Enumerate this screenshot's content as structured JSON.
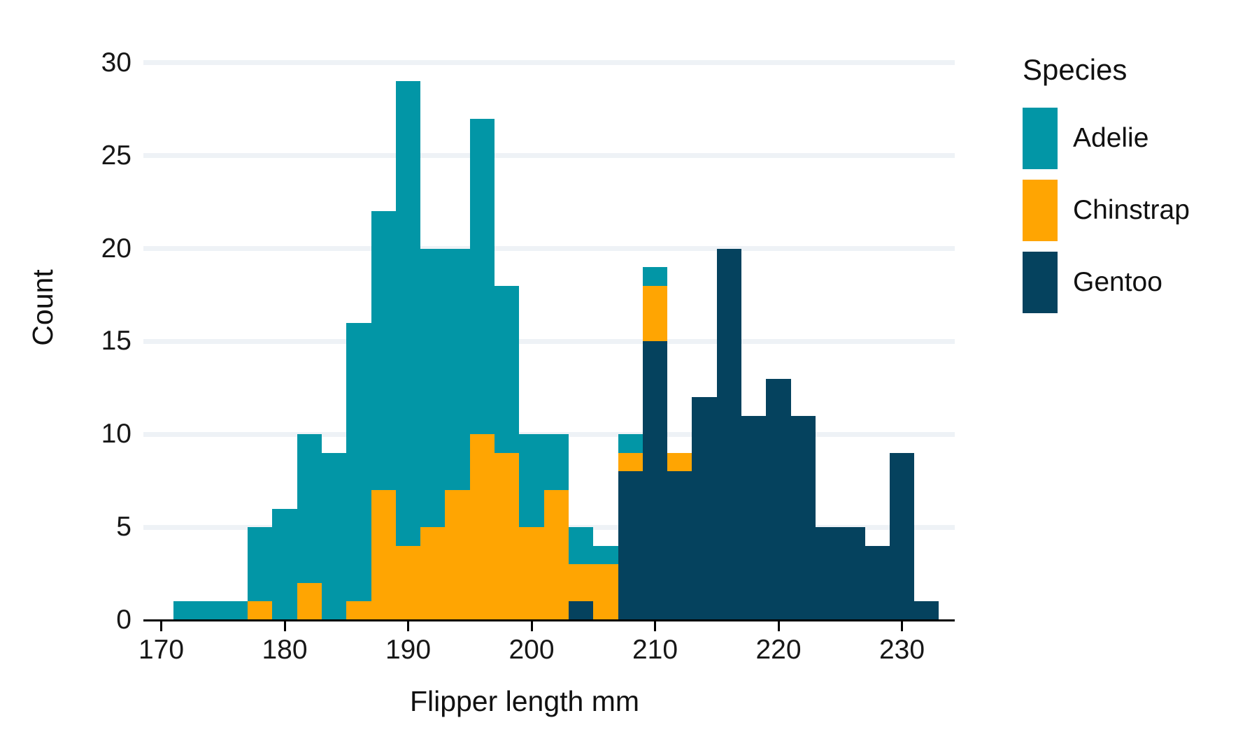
{
  "chart_data": {
    "type": "bar",
    "subtype": "stacked-histogram",
    "title": "",
    "xlabel": "Flipper length mm",
    "ylabel": "Count",
    "bin_width_mm": 2,
    "bin_starts": [
      171,
      173,
      175,
      177,
      179,
      181,
      183,
      185,
      187,
      189,
      191,
      193,
      195,
      197,
      199,
      201,
      203,
      205,
      207,
      209,
      211,
      213,
      215,
      217,
      219,
      221,
      223,
      225,
      227,
      229,
      231
    ],
    "series": [
      {
        "name": "Adelie",
        "color": "#0296A6",
        "values": [
          1,
          1,
          1,
          4,
          6,
          8,
          9,
          15,
          15,
          25,
          15,
          13,
          17,
          9,
          5,
          3,
          2,
          1,
          1,
          1,
          0,
          0,
          0,
          0,
          0,
          0,
          0,
          0,
          0,
          0,
          0
        ]
      },
      {
        "name": "Chinstrap",
        "color": "#FFA502",
        "values": [
          0,
          0,
          0,
          1,
          0,
          2,
          0,
          1,
          7,
          4,
          5,
          7,
          10,
          9,
          5,
          7,
          2,
          3,
          1,
          3,
          1,
          0,
          0,
          0,
          0,
          0,
          0,
          0,
          0,
          0,
          0
        ]
      },
      {
        "name": "Gentoo",
        "color": "#05425E",
        "values": [
          0,
          0,
          0,
          0,
          0,
          0,
          0,
          0,
          0,
          0,
          0,
          0,
          0,
          0,
          0,
          0,
          1,
          0,
          8,
          15,
          8,
          12,
          20,
          11,
          13,
          11,
          5,
          5,
          4,
          9,
          1
        ]
      }
    ],
    "stack_order_bottom_to_top": [
      "Gentoo",
      "Chinstrap",
      "Adelie"
    ],
    "x_ticks": [
      170,
      180,
      190,
      200,
      210,
      220,
      230
    ],
    "y_ticks": [
      0,
      5,
      10,
      15,
      20,
      25,
      30
    ],
    "ylim": [
      0,
      30
    ],
    "grid": "horizontal",
    "grid_color": "#EEF2F6",
    "legend_position": "right"
  },
  "legend": {
    "title": "Species",
    "items": [
      {
        "label": "Adelie",
        "color": "#0296A6"
      },
      {
        "label": "Chinstrap",
        "color": "#FFA502"
      },
      {
        "label": "Gentoo",
        "color": "#05425E"
      }
    ]
  }
}
